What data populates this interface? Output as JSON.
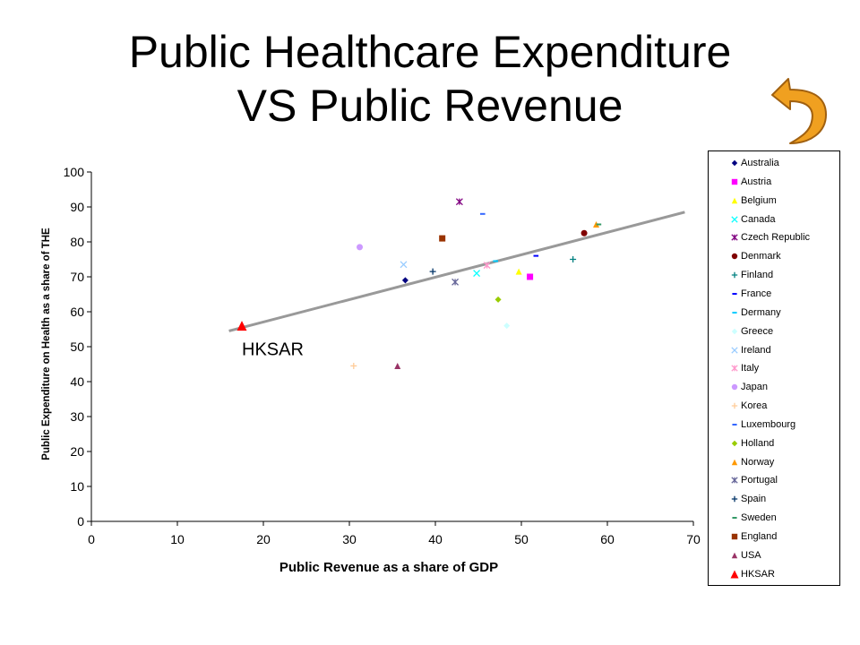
{
  "slide": {
    "title_line1": "Public Healthcare Expenditure",
    "title_line2": "VS Public Revenue",
    "back_icon": "curved-back-arrow-icon",
    "back_icon_color": "#F0A020"
  },
  "chart_data": {
    "type": "scatter",
    "xlabel": "Public Revenue as a share of GDP",
    "ylabel": "Public Expenditure on Health as a share of THE",
    "xlim": [
      0,
      70
    ],
    "ylim": [
      0,
      100
    ],
    "xticks": [
      0,
      10,
      20,
      30,
      40,
      50,
      60,
      70
    ],
    "yticks": [
      0,
      10,
      20,
      30,
      40,
      50,
      60,
      70,
      80,
      90,
      100
    ],
    "grid": false,
    "legend_position": "right",
    "annotation": "HKSAR",
    "trendline": {
      "x": [
        16,
        69
      ],
      "y": [
        54.5,
        88.5
      ],
      "color": "#999999"
    },
    "series": [
      {
        "name": "Australia",
        "marker": "diamond",
        "color": "#000080",
        "x": 36.5,
        "y": 69
      },
      {
        "name": "Austria",
        "marker": "square",
        "color": "#FF00FF",
        "x": 51,
        "y": 70
      },
      {
        "name": "Belgium",
        "marker": "triangle",
        "color": "#FFFF00",
        "x": 49.7,
        "y": 71.5
      },
      {
        "name": "Canada",
        "marker": "x",
        "color": "#00FFFF",
        "x": 44.8,
        "y": 71
      },
      {
        "name": "Czech Republic",
        "marker": "star",
        "color": "#800080",
        "x": 42.8,
        "y": 91.5
      },
      {
        "name": "Denmark",
        "marker": "circle",
        "color": "#800000",
        "x": 57.3,
        "y": 82.5
      },
      {
        "name": "Finland",
        "marker": "plus",
        "color": "#008080",
        "x": 56,
        "y": 75
      },
      {
        "name": "France",
        "marker": "dash",
        "color": "#0000FF",
        "x": 51.7,
        "y": 76
      },
      {
        "name": "Dermany",
        "marker": "dash",
        "color": "#00CCFF",
        "x": 47,
        "y": 74.5
      },
      {
        "name": "Greece",
        "marker": "diamond",
        "color": "#CCFFFF",
        "x": 48.3,
        "y": 56
      },
      {
        "name": "Ireland",
        "marker": "x",
        "color": "#99CCFF",
        "x": 36.3,
        "y": 73.5
      },
      {
        "name": "Italy",
        "marker": "star",
        "color": "#FF99CC",
        "x": 46,
        "y": 73.3
      },
      {
        "name": "Japan",
        "marker": "circle",
        "color": "#CC99FF",
        "x": 31.2,
        "y": 78.5
      },
      {
        "name": "Korea",
        "marker": "plus",
        "color": "#FFCC99",
        "x": 30.5,
        "y": 44.5
      },
      {
        "name": "Luxembourg",
        "marker": "dash",
        "color": "#3366FF",
        "x": 45.5,
        "y": 88
      },
      {
        "name": "Holland",
        "marker": "diamond",
        "color": "#99CC00",
        "x": 47.3,
        "y": 63.5
      },
      {
        "name": "Norway",
        "marker": "triangle",
        "color": "#FF9900",
        "x": 58.7,
        "y": 85
      },
      {
        "name": "Portugal",
        "marker": "star",
        "color": "#666699",
        "x": 42.3,
        "y": 68.5
      },
      {
        "name": "Spain",
        "marker": "plus",
        "color": "#003366",
        "x": 39.7,
        "y": 71.5
      },
      {
        "name": "Sweden",
        "marker": "dash",
        "color": "#339966",
        "x": 59,
        "y": 85
      },
      {
        "name": "England",
        "marker": "square",
        "color": "#993300",
        "x": 40.8,
        "y": 81
      },
      {
        "name": "USA",
        "marker": "triangle",
        "color": "#993366",
        "x": 35.6,
        "y": 44.5
      },
      {
        "name": "HKSAR",
        "marker": "triangle",
        "color": "#FF0000",
        "x": 17.5,
        "y": 56
      }
    ]
  }
}
